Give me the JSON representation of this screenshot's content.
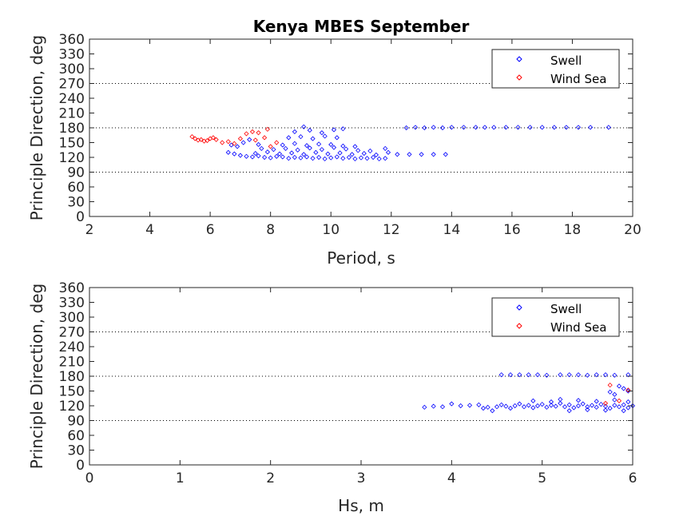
{
  "title": "Kenya MBES September",
  "chart_data": [
    {
      "type": "scatter",
      "xlabel": "Period, s",
      "ylabel": "Principle Direction, deg",
      "xlim": [
        2,
        20
      ],
      "ylim": [
        0,
        360
      ],
      "xticks": [
        2,
        4,
        6,
        8,
        10,
        12,
        14,
        16,
        18,
        20
      ],
      "yticks": [
        0,
        30,
        60,
        90,
        120,
        150,
        180,
        210,
        240,
        270,
        300,
        330,
        360
      ],
      "reference_lines": [
        90,
        180,
        270
      ],
      "grid": false,
      "legend": {
        "position": "top-right",
        "entries": [
          "Swell",
          "Wind Sea"
        ]
      },
      "series": [
        {
          "name": "Swell",
          "color": "#0000ff",
          "points": [
            [
              6.6,
              130
            ],
            [
              6.8,
              127
            ],
            [
              7.0,
              124
            ],
            [
              7.2,
              122
            ],
            [
              7.4,
              121
            ],
            [
              7.6,
              123
            ],
            [
              7.8,
              120
            ],
            [
              8.0,
              119
            ],
            [
              8.2,
              122
            ],
            [
              8.4,
              121
            ],
            [
              8.6,
              118
            ],
            [
              8.8,
              120
            ],
            [
              9.0,
              119
            ],
            [
              9.2,
              121
            ],
            [
              9.4,
              118
            ],
            [
              9.6,
              120
            ],
            [
              9.8,
              117
            ],
            [
              10.0,
              119
            ],
            [
              10.2,
              121
            ],
            [
              10.4,
              118
            ],
            [
              10.6,
              120
            ],
            [
              10.8,
              117
            ],
            [
              11.0,
              119
            ],
            [
              11.2,
              118
            ],
            [
              11.4,
              120
            ],
            [
              11.6,
              117
            ],
            [
              11.8,
              118
            ],
            [
              7.5,
              128
            ],
            [
              7.9,
              131
            ],
            [
              8.3,
              127
            ],
            [
              8.7,
              129
            ],
            [
              9.1,
              126
            ],
            [
              9.5,
              130
            ],
            [
              9.9,
              127
            ],
            [
              10.3,
              129
            ],
            [
              10.7,
              126
            ],
            [
              11.1,
              128
            ],
            [
              11.5,
              125
            ],
            [
              8.1,
              136
            ],
            [
              8.5,
              138
            ],
            [
              8.9,
              135
            ],
            [
              9.3,
              139
            ],
            [
              9.7,
              136
            ],
            [
              10.1,
              140
            ],
            [
              10.5,
              137
            ],
            [
              10.9,
              134
            ],
            [
              11.3,
              133
            ],
            [
              8.4,
              145
            ],
            [
              8.8,
              148
            ],
            [
              9.2,
              144
            ],
            [
              9.6,
              147
            ],
            [
              10.0,
              146
            ],
            [
              10.4,
              143
            ],
            [
              10.8,
              142
            ],
            [
              8.6,
              160
            ],
            [
              9.0,
              162
            ],
            [
              9.4,
              158
            ],
            [
              9.8,
              163
            ],
            [
              10.2,
              160
            ],
            [
              8.8,
              172
            ],
            [
              9.3,
              175
            ],
            [
              9.7,
              170
            ],
            [
              10.1,
              176
            ],
            [
              10.4,
              178
            ],
            [
              9.1,
              182
            ],
            [
              7.1,
              150
            ],
            [
              7.6,
              146
            ],
            [
              6.9,
              142
            ],
            [
              7.3,
              156
            ],
            [
              7.7,
              138
            ],
            [
              6.7,
              145
            ],
            [
              11.8,
              138
            ],
            [
              11.9,
              130
            ],
            [
              12.2,
              126
            ],
            [
              12.6,
              126
            ],
            [
              13.0,
              126
            ],
            [
              13.4,
              126
            ],
            [
              13.8,
              126
            ],
            [
              12.5,
              180
            ],
            [
              12.8,
              181
            ],
            [
              13.1,
              180
            ],
            [
              13.4,
              181
            ],
            [
              13.7,
              180
            ],
            [
              14.0,
              181
            ],
            [
              14.4,
              181
            ],
            [
              14.8,
              181
            ],
            [
              15.1,
              181
            ],
            [
              15.4,
              181
            ],
            [
              15.8,
              181
            ],
            [
              16.2,
              181
            ],
            [
              16.6,
              181
            ],
            [
              17.0,
              181
            ],
            [
              17.4,
              181
            ],
            [
              17.8,
              181
            ],
            [
              18.2,
              181
            ],
            [
              18.6,
              181
            ],
            [
              19.2,
              181
            ]
          ]
        },
        {
          "name": "Wind Sea",
          "color": "#ff0000",
          "points": [
            [
              5.4,
              162
            ],
            [
              5.5,
              158
            ],
            [
              5.6,
              155
            ],
            [
              5.7,
              156
            ],
            [
              5.8,
              153
            ],
            [
              5.9,
              154
            ],
            [
              6.0,
              158
            ],
            [
              6.1,
              160
            ],
            [
              6.2,
              156
            ],
            [
              6.4,
              150
            ],
            [
              6.6,
              152
            ],
            [
              6.8,
              148
            ],
            [
              7.0,
              158
            ],
            [
              7.2,
              168
            ],
            [
              7.4,
              172
            ],
            [
              7.6,
              170
            ],
            [
              7.8,
              160
            ],
            [
              8.0,
              142
            ],
            [
              8.2,
              150
            ],
            [
              7.9,
              177
            ],
            [
              7.5,
              155
            ]
          ]
        }
      ]
    },
    {
      "type": "scatter",
      "xlabel": "Hs, m",
      "ylabel": "Principle Direction, deg",
      "xlim": [
        0,
        6
      ],
      "ylim": [
        0,
        360
      ],
      "xticks": [
        0,
        1,
        2,
        3,
        4,
        5,
        6
      ],
      "yticks": [
        0,
        30,
        60,
        90,
        120,
        150,
        180,
        210,
        240,
        270,
        300,
        330,
        360
      ],
      "reference_lines": [
        90,
        180,
        270
      ],
      "grid": false,
      "legend": {
        "position": "top-right",
        "entries": [
          "Swell",
          "Wind Sea"
        ]
      },
      "series": [
        {
          "name": "Swell",
          "color": "#0000ff",
          "points": [
            [
              3.7,
              117
            ],
            [
              3.8,
              119
            ],
            [
              3.9,
              118
            ],
            [
              4.0,
              124
            ],
            [
              4.1,
              120
            ],
            [
              4.2,
              121
            ],
            [
              4.3,
              122
            ],
            [
              4.35,
              115
            ],
            [
              4.4,
              117
            ],
            [
              4.45,
              110
            ],
            [
              4.5,
              118
            ],
            [
              4.55,
              122
            ],
            [
              4.6,
              119
            ],
            [
              4.65,
              115
            ],
            [
              4.7,
              120
            ],
            [
              4.75,
              124
            ],
            [
              4.8,
              118
            ],
            [
              4.85,
              121
            ],
            [
              4.9,
              116
            ],
            [
              4.95,
              120
            ],
            [
              5.0,
              123
            ],
            [
              5.05,
              117
            ],
            [
              5.1,
              121
            ],
            [
              5.15,
              119
            ],
            [
              5.2,
              125
            ],
            [
              5.25,
              118
            ],
            [
              5.3,
              122
            ],
            [
              5.35,
              116
            ],
            [
              5.4,
              120
            ],
            [
              5.45,
              124
            ],
            [
              5.5,
              118
            ],
            [
              5.55,
              121
            ],
            [
              5.6,
              117
            ],
            [
              5.65,
              123
            ],
            [
              5.7,
              119
            ],
            [
              5.75,
              115
            ],
            [
              5.8,
              121
            ],
            [
              5.85,
              118
            ],
            [
              5.9,
              122
            ],
            [
              5.95,
              116
            ],
            [
              6.0,
              120
            ],
            [
              4.9,
              130
            ],
            [
              5.1,
              128
            ],
            [
              5.2,
              133
            ],
            [
              5.4,
              131
            ],
            [
              5.6,
              129
            ],
            [
              5.8,
              132
            ],
            [
              5.95,
              128
            ],
            [
              5.3,
              110
            ],
            [
              5.5,
              112
            ],
            [
              5.7,
              111
            ],
            [
              5.9,
              110
            ],
            [
              4.55,
              183
            ],
            [
              4.65,
              183
            ],
            [
              4.75,
              183
            ],
            [
              4.85,
              183
            ],
            [
              4.95,
              183
            ],
            [
              5.05,
              182
            ],
            [
              5.2,
              183
            ],
            [
              5.3,
              183
            ],
            [
              5.4,
              183
            ],
            [
              5.5,
              182
            ],
            [
              5.6,
              183
            ],
            [
              5.7,
              183
            ],
            [
              5.8,
              182
            ],
            [
              5.95,
              183
            ],
            [
              5.85,
              160
            ],
            [
              5.9,
              155
            ],
            [
              5.95,
              150
            ],
            [
              5.75,
              148
            ],
            [
              5.8,
              143
            ]
          ]
        },
        {
          "name": "Wind Sea",
          "color": "#ff0000",
          "points": [
            [
              5.75,
              162
            ],
            [
              5.95,
              152
            ],
            [
              5.7,
              125
            ],
            [
              5.85,
              130
            ]
          ]
        }
      ]
    }
  ]
}
